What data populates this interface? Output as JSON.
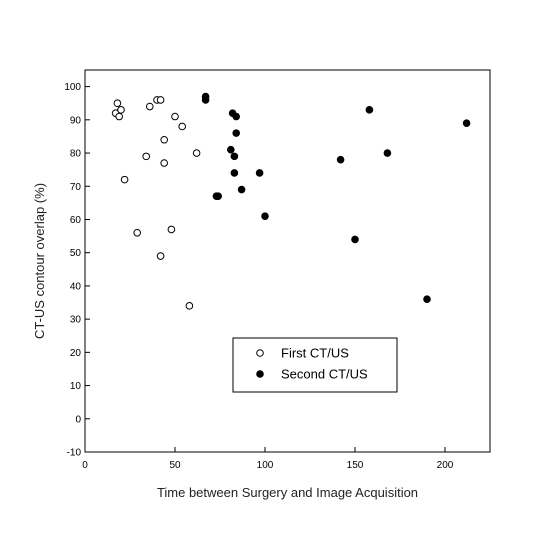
{
  "chart_data": {
    "type": "scatter",
    "title": "",
    "xlabel": "Time between Surgery and Image Acquisition",
    "ylabel": "CT-US contour overlap (%)",
    "xlim": [
      0,
      225
    ],
    "ylim": [
      -10,
      105
    ],
    "x_ticks": [
      0,
      50,
      100,
      150,
      200
    ],
    "y_ticks": [
      -10,
      0,
      10,
      20,
      30,
      40,
      50,
      60,
      70,
      80,
      90,
      100
    ],
    "grid": false,
    "legend": {
      "position": "bottom-center"
    },
    "series": [
      {
        "name": "First CT/US",
        "marker": "open-circle",
        "color": "#000000",
        "points": [
          [
            17,
            92
          ],
          [
            18,
            95
          ],
          [
            19,
            91
          ],
          [
            20,
            93
          ],
          [
            22,
            72
          ],
          [
            29,
            56
          ],
          [
            34,
            79
          ],
          [
            36,
            94
          ],
          [
            40,
            96
          ],
          [
            42,
            96
          ],
          [
            42,
            49
          ],
          [
            44,
            84
          ],
          [
            44,
            77
          ],
          [
            48,
            57
          ],
          [
            50,
            91
          ],
          [
            54,
            88
          ],
          [
            58,
            34
          ],
          [
            62,
            80
          ]
        ]
      },
      {
        "name": "Second CT/US",
        "marker": "filled-circle",
        "color": "#000000",
        "points": [
          [
            67,
            96
          ],
          [
            67,
            97
          ],
          [
            73,
            67
          ],
          [
            74,
            67
          ],
          [
            81,
            81
          ],
          [
            82,
            92
          ],
          [
            83,
            79
          ],
          [
            83,
            74
          ],
          [
            84,
            91
          ],
          [
            84,
            86
          ],
          [
            87,
            69
          ],
          [
            97,
            74
          ],
          [
            100,
            61
          ],
          [
            142,
            78
          ],
          [
            150,
            54
          ],
          [
            158,
            93
          ],
          [
            168,
            80
          ],
          [
            190,
            36
          ],
          [
            212,
            89
          ]
        ]
      }
    ]
  }
}
